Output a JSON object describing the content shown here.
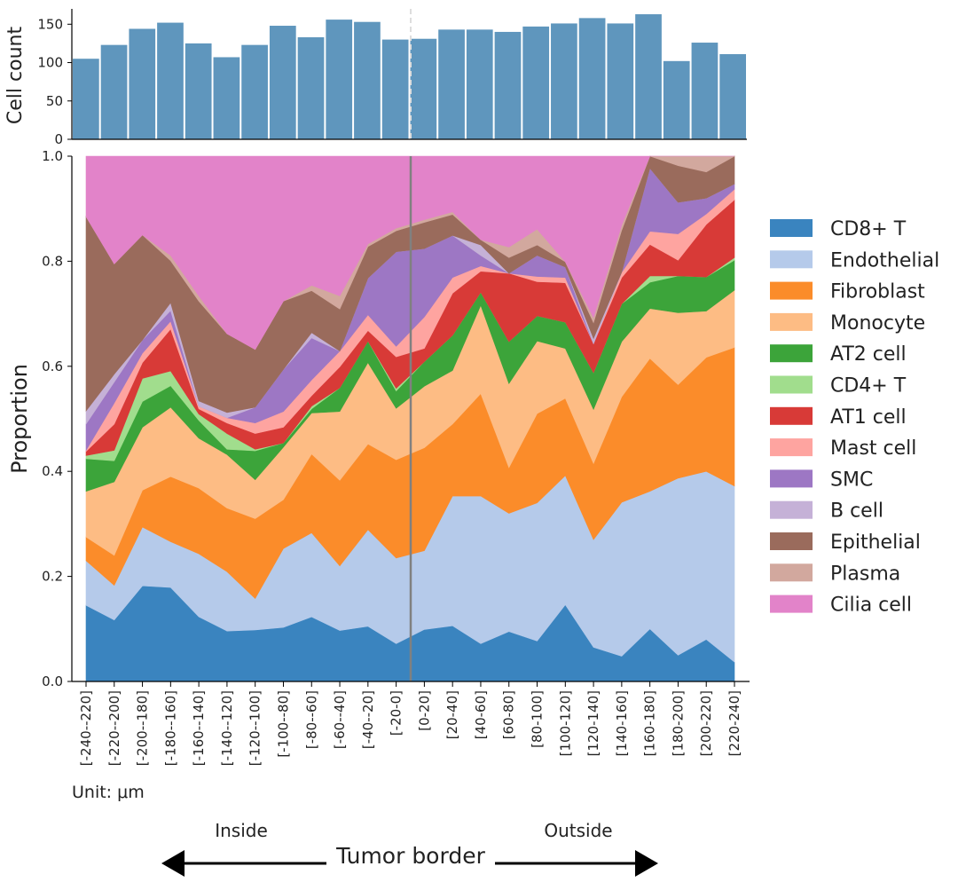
{
  "chart_data": [
    {
      "type": "bar",
      "categories": [
        "[-240--220]",
        "[-220--200]",
        "[-200--180]",
        "[-180--160]",
        "[-160--140]",
        "[-140--120]",
        "[-120--100]",
        "[-100--80]",
        "[-80--60]",
        "[-60--40]",
        "[-40--20]",
        "[-20-0]",
        "[0-20]",
        "[20-40]",
        "[40-60]",
        "[60-80]",
        "[80-100]",
        "[100-120]",
        "[120-140]",
        "[140-160]",
        "[160-180]",
        "[180-200]",
        "[200-220]",
        "[220-240]"
      ],
      "values": [
        105,
        123,
        144,
        152,
        125,
        107,
        123,
        148,
        133,
        156,
        153,
        130,
        131,
        143,
        143,
        140,
        147,
        151,
        158,
        151,
        163,
        102,
        126,
        111
      ],
      "ylabel": "Cell count",
      "ylim": [
        0,
        170
      ],
      "yticks": [
        0,
        50,
        100,
        150
      ],
      "color": "#5f96bd"
    },
    {
      "type": "area",
      "stacked": true,
      "ylabel": "Proportion",
      "ylim": [
        0,
        1
      ],
      "yticks": [
        "0.0",
        "0.2",
        "0.4",
        "0.6",
        "0.8",
        "1.0"
      ],
      "categories": [
        "[-240--220]",
        "[-220--200]",
        "[-200--180]",
        "[-180--160]",
        "[-160--140]",
        "[-140--120]",
        "[-120--100]",
        "[-100--80]",
        "[-80--60]",
        "[-60--40]",
        "[-40--20]",
        "[-20-0]",
        "[0-20]",
        "[20-40]",
        "[40-60]",
        "[60-80]",
        "[80-100]",
        "[100-120]",
        "[120-140]",
        "[140-160]",
        "[160-180]",
        "[180-200]",
        "[200-220]",
        "[220-240]"
      ],
      "series": [
        {
          "name": "CD8+ T",
          "color": "#3a84bf",
          "values": [
            0.145,
            0.117,
            0.182,
            0.179,
            0.123,
            0.096,
            0.098,
            0.103,
            0.123,
            0.097,
            0.105,
            0.072,
            0.099,
            0.106,
            0.072,
            0.095,
            0.077,
            0.146,
            0.065,
            0.048,
            0.1,
            0.05,
            0.08,
            0.037
          ]
        },
        {
          "name": "Endothelial",
          "color": "#b5caea",
          "values": [
            0.085,
            0.066,
            0.112,
            0.087,
            0.12,
            0.113,
            0.06,
            0.15,
            0.16,
            0.123,
            0.184,
            0.163,
            0.15,
            0.247,
            0.281,
            0.225,
            0.263,
            0.246,
            0.205,
            0.293,
            0.262,
            0.337,
            0.32,
            0.335
          ]
        },
        {
          "name": "Fibroblast",
          "color": "#fb8c2a",
          "values": [
            0.045,
            0.057,
            0.07,
            0.124,
            0.125,
            0.121,
            0.152,
            0.093,
            0.15,
            0.163,
            0.163,
            0.187,
            0.196,
            0.137,
            0.195,
            0.087,
            0.17,
            0.147,
            0.145,
            0.201,
            0.253,
            0.178,
            0.217,
            0.264
          ]
        },
        {
          "name": "Monocyte",
          "color": "#fdbc84",
          "values": [
            0.087,
            0.14,
            0.12,
            0.132,
            0.095,
            0.102,
            0.074,
            0.1,
            0.078,
            0.131,
            0.155,
            0.098,
            0.117,
            0.102,
            0.168,
            0.16,
            0.138,
            0.095,
            0.103,
            0.105,
            0.095,
            0.137,
            0.088,
            0.109
          ]
        },
        {
          "name": "AT2 cell",
          "color": "#3ca43a",
          "values": [
            0.062,
            0.04,
            0.049,
            0.041,
            0.034,
            0.01,
            0.055,
            0.008,
            0.008,
            0.045,
            0.041,
            0.033,
            0.047,
            0.067,
            0.025,
            0.08,
            0.048,
            0.05,
            0.07,
            0.072,
            0.05,
            0.07,
            0.065,
            0.057
          ]
        },
        {
          "name": "CD4+ T",
          "color": "#a1dd8d",
          "values": [
            0.006,
            0.02,
            0.044,
            0.028,
            0.012,
            0.03,
            0.003,
            0.0,
            0.005,
            0.0,
            0.0,
            0.005,
            0.0,
            0.0,
            0.0,
            0.0,
            0.0,
            0.0,
            0.0,
            0.0,
            0.012,
            0.0,
            0.0,
            0.005
          ]
        },
        {
          "name": "AT1 cell",
          "color": "#d83a37",
          "values": [
            0.008,
            0.05,
            0.03,
            0.08,
            0.01,
            0.02,
            0.03,
            0.03,
            0.02,
            0.04,
            0.02,
            0.06,
            0.025,
            0.08,
            0.04,
            0.13,
            0.065,
            0.075,
            0.055,
            0.05,
            0.06,
            0.03,
            0.1,
            0.11
          ]
        },
        {
          "name": "Mast cell",
          "color": "#fea4a0",
          "values": [
            0.002,
            0.04,
            0.018,
            0.015,
            0.005,
            0.01,
            0.02,
            0.03,
            0.03,
            0.03,
            0.03,
            0.02,
            0.06,
            0.03,
            0.01,
            0.0,
            0.01,
            0.01,
            0.0,
            0.01,
            0.025,
            0.05,
            0.02,
            0.02
          ]
        },
        {
          "name": "SMC",
          "color": "#9d77c4",
          "values": [
            0.05,
            0.04,
            0.025,
            0.02,
            0.0,
            0.0,
            0.03,
            0.08,
            0.08,
            0.0,
            0.07,
            0.18,
            0.13,
            0.08,
            0.02,
            0.0,
            0.04,
            0.02,
            0.0,
            0.0,
            0.12,
            0.06,
            0.03,
            0.01
          ]
        },
        {
          "name": "B cell",
          "color": "#c5b1d7",
          "values": [
            0.025,
            0.015,
            0.0,
            0.015,
            0.01,
            0.01,
            0.0,
            0.0,
            0.01,
            0.0,
            0.0,
            0.0,
            0.0,
            0.0,
            0.02,
            0.0,
            0.0,
            0.0,
            0.01,
            0.0,
            0.0,
            0.0,
            0.0,
            0.0
          ]
        },
        {
          "name": "Epithelial",
          "color": "#9a6b5c",
          "values": [
            0.37,
            0.21,
            0.2,
            0.08,
            0.19,
            0.15,
            0.11,
            0.13,
            0.08,
            0.08,
            0.06,
            0.04,
            0.05,
            0.04,
            0.01,
            0.03,
            0.02,
            0.01,
            0.03,
            0.08,
            0.1,
            0.07,
            0.05,
            0.06
          ]
        },
        {
          "name": "Plasma",
          "color": "#d2a89e",
          "values": [
            0.0,
            0.0,
            0.0,
            0.01,
            0.01,
            0.0,
            0.0,
            0.0,
            0.01,
            0.025,
            0.005,
            0.005,
            0.005,
            0.005,
            0.0,
            0.02,
            0.03,
            0.0,
            0.01,
            0.01,
            0.01,
            0.02,
            0.03,
            0.0
          ]
        },
        {
          "name": "Cilia cell",
          "color": "#e283c9",
          "values": [
            0.115,
            0.205,
            0.15,
            0.189,
            0.266,
            0.338,
            0.368,
            0.276,
            0.246,
            0.266,
            0.167,
            0.137,
            0.121,
            0.106,
            0.159,
            0.173,
            0.139,
            0.201,
            0.307,
            0.131,
            0.013,
            0.0,
            0.0,
            0.003
          ]
        }
      ]
    }
  ],
  "annotations": {
    "unit": "Unit: μm",
    "inside": "Inside",
    "outside": "Outside",
    "border_label": "Tumor border"
  }
}
